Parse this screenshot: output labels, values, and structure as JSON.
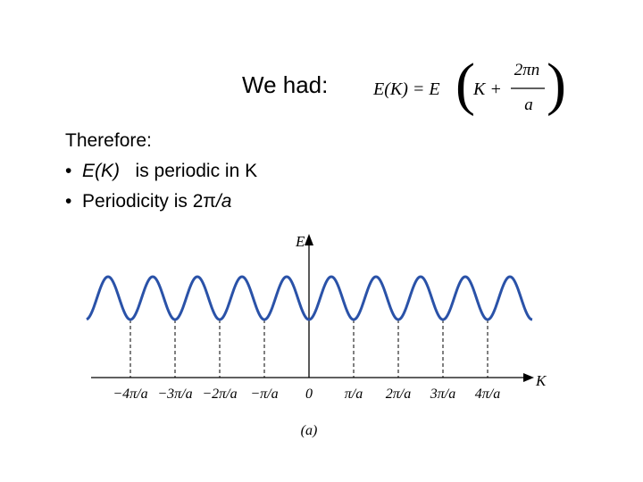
{
  "header": {
    "lead": "We had:",
    "formula": {
      "lhs": "E(K) = E",
      "inner": "K +",
      "numerator": "2πn",
      "denominator": "a"
    }
  },
  "body": {
    "intro": "Therefore:",
    "bullets": [
      {
        "math": "E(K)",
        "text": "is periodic in K"
      },
      {
        "text": "Periodicity is 2π",
        "math": "/a"
      }
    ]
  },
  "figure": {
    "y_axis_label": "E",
    "x_axis_label": "K",
    "x_tick_labels": [
      "−4π/a",
      "−3π/a",
      "−2π/a",
      "−π/a",
      "0",
      "π/a",
      "2π/a",
      "3π/a",
      "4π/a"
    ],
    "caption": "(a)"
  }
}
